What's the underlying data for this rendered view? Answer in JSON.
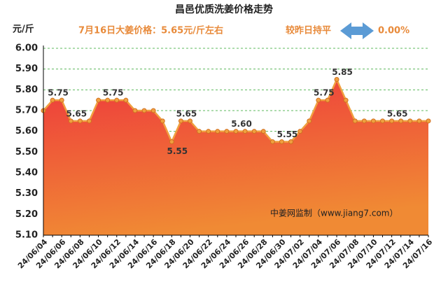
{
  "chart_data": {
    "type": "area",
    "title": "昌邑优质洗姜价格走势",
    "y_label": "元/斤",
    "subtitle": "7月16日大姜价格：5.65元/斤左右",
    "change_text": "较昨日持平",
    "change_value": "0.00%",
    "watermark": "中姜网监制（www.jiang7.com）",
    "categories": [
      "24/06/04",
      null,
      "24/06/06",
      null,
      "24/06/08",
      null,
      "24/06/10",
      null,
      "24/06/12",
      null,
      "24/06/14",
      null,
      "24/06/16",
      null,
      "24/06/18",
      null,
      "24/06/20",
      null,
      "24/06/22",
      null,
      "24/06/24",
      null,
      "24/06/26",
      null,
      "24/06/28",
      null,
      "24/06/30",
      null,
      "24/07/02",
      null,
      "24/07/04",
      null,
      "24/07/06",
      null,
      "24/07/08",
      null,
      "24/07/10",
      null,
      "24/07/12",
      null,
      "24/07/14",
      null,
      "24/07/16"
    ],
    "values": [
      5.7,
      5.75,
      5.75,
      5.65,
      5.65,
      5.65,
      5.75,
      5.75,
      5.75,
      5.75,
      5.7,
      5.7,
      5.7,
      5.65,
      5.55,
      5.65,
      5.65,
      5.6,
      5.6,
      5.6,
      5.6,
      5.6,
      5.6,
      5.6,
      5.6,
      5.55,
      5.55,
      5.55,
      5.6,
      5.65,
      5.75,
      5.75,
      5.85,
      5.75,
      5.65,
      5.65,
      5.65,
      5.65,
      5.65,
      5.65,
      5.65,
      5.65,
      5.65
    ],
    "value_labels": [
      null,
      "5.75",
      null,
      "5.65",
      null,
      null,
      null,
      "5.75",
      null,
      null,
      null,
      null,
      null,
      null,
      "5.55",
      "5.65",
      null,
      null,
      null,
      null,
      null,
      "5.60",
      null,
      null,
      null,
      null,
      "5.55",
      null,
      null,
      null,
      "5.75",
      null,
      "5.85",
      null,
      null,
      null,
      null,
      null,
      "5.65",
      null,
      null,
      null,
      null
    ],
    "color": "#f0a040",
    "ylim": [
      5.1,
      6.0
    ],
    "yticks": [
      {
        "value": 5.1,
        "label": "5.10"
      },
      {
        "value": 5.2,
        "label": "5.20"
      },
      {
        "value": 5.3,
        "label": "5.30"
      },
      {
        "value": 5.4,
        "label": "5.40"
      },
      {
        "value": 5.5,
        "label": "5.50"
      },
      {
        "value": 5.6,
        "label": "5.60"
      },
      {
        "value": 5.7,
        "label": "5.70"
      },
      {
        "value": 5.8,
        "label": "5.80"
      },
      {
        "value": 5.9,
        "label": "5.90"
      },
      {
        "value": 6.0,
        "label": "6.00"
      }
    ],
    "grid": true
  }
}
